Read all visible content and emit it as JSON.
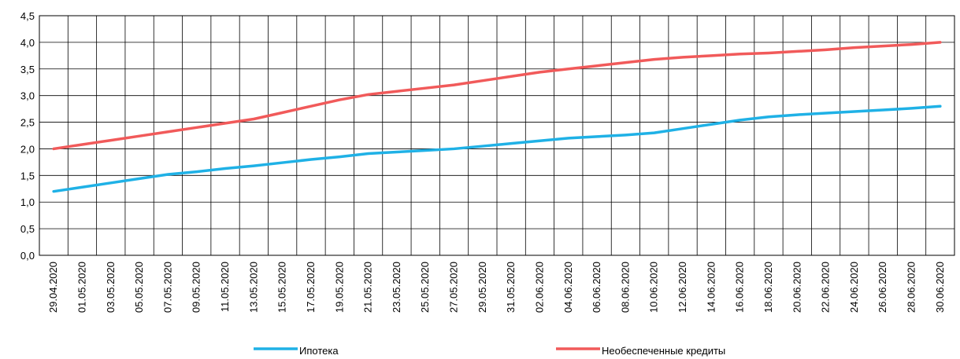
{
  "chart_data": {
    "type": "line",
    "title": "",
    "xlabel": "",
    "ylabel": "",
    "ylim": [
      0,
      4.5
    ],
    "y_ticks": [
      "0,0",
      "0,5",
      "1,0",
      "1,5",
      "2,0",
      "2,5",
      "3,0",
      "3,5",
      "4,0",
      "4,5"
    ],
    "grid": true,
    "legend_position": "bottom",
    "categories": [
      "29.04.2020",
      "01.05.2020",
      "03.05.2020",
      "05.05.2020",
      "07.05.2020",
      "09.05.2020",
      "11.05.2020",
      "13.05.2020",
      "15.05.2020",
      "17.05.2020",
      "19.05.2020",
      "21.05.2020",
      "23.05.2020",
      "25.05.2020",
      "27.05.2020",
      "29.05.2020",
      "31.05.2020",
      "02.06.2020",
      "04.06.2020",
      "06.06.2020",
      "08.06.2020",
      "10.06.2020",
      "12.06.2020",
      "14.06.2020",
      "16.06.2020",
      "18.06.2020",
      "20.06.2020",
      "22.06.2020",
      "24.06.2020",
      "26.06.2020",
      "28.06.2020",
      "30.06.2020"
    ],
    "series": [
      {
        "name": "Ипотека",
        "color": "#1fb1e6",
        "values": [
          1.2,
          1.28,
          1.36,
          1.44,
          1.52,
          1.57,
          1.63,
          1.68,
          1.74,
          1.8,
          1.85,
          1.91,
          1.94,
          1.97,
          2.0,
          2.05,
          2.1,
          2.15,
          2.2,
          2.23,
          2.26,
          2.3,
          2.38,
          2.46,
          2.54,
          2.6,
          2.64,
          2.67,
          2.7,
          2.73,
          2.76,
          2.8
        ]
      },
      {
        "name": "Необеспеченные кредиты",
        "color": "#f15a5a",
        "values": [
          2.0,
          2.08,
          2.16,
          2.24,
          2.32,
          2.4,
          2.48,
          2.56,
          2.68,
          2.8,
          2.92,
          3.02,
          3.08,
          3.14,
          3.2,
          3.28,
          3.36,
          3.44,
          3.5,
          3.56,
          3.62,
          3.68,
          3.72,
          3.75,
          3.78,
          3.8,
          3.83,
          3.86,
          3.9,
          3.93,
          3.96,
          4.0
        ]
      }
    ]
  }
}
